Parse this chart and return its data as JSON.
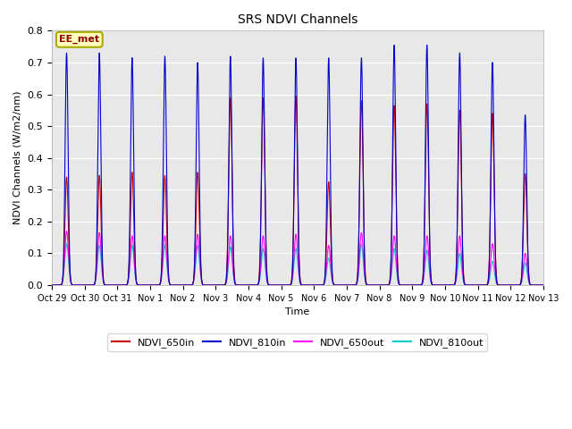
{
  "title": "SRS NDVI Channels",
  "ylabel": "NDVI Channels (W/m2/nm)",
  "xlabel": "Time",
  "ylim": [
    0.0,
    0.8
  ],
  "yticks": [
    0.0,
    0.1,
    0.2,
    0.3,
    0.4,
    0.5,
    0.6,
    0.7,
    0.8
  ],
  "annotation_text": "EE_met",
  "annotation_color": "#8B0000",
  "annotation_bg": "#FFFFBB",
  "annotation_border": "#AAAA00",
  "bg_color": "#E8E8E8",
  "colors": {
    "NDVI_650in": "#CC0000",
    "NDVI_810in": "#0000CC",
    "NDVI_650out": "#FF00FF",
    "NDVI_810out": "#00CCCC"
  },
  "x_tick_labels": [
    "Oct 29",
    "Oct 30",
    "Oct 31",
    "Nov 1",
    "Nov 2",
    "Nov 3",
    "Nov 4",
    "Nov 5",
    "Nov 6",
    "Nov 7",
    "Nov 8",
    "Nov 9",
    "Nov 10",
    "Nov 11",
    "Nov 12",
    "Nov 13"
  ],
  "num_days": 15,
  "peaks_810in": [
    0.73,
    0.73,
    0.715,
    0.72,
    0.7,
    0.72,
    0.715,
    0.715,
    0.715,
    0.715,
    0.755,
    0.755,
    0.73,
    0.7,
    0.535
  ],
  "peaks_650in": [
    0.34,
    0.345,
    0.355,
    0.345,
    0.355,
    0.59,
    0.59,
    0.595,
    0.325,
    0.58,
    0.565,
    0.57,
    0.55,
    0.54,
    0.35
  ],
  "peaks_650out": [
    0.17,
    0.165,
    0.155,
    0.155,
    0.16,
    0.155,
    0.155,
    0.16,
    0.125,
    0.165,
    0.155,
    0.155,
    0.155,
    0.13,
    0.1
  ],
  "peaks_810out": [
    0.13,
    0.125,
    0.125,
    0.125,
    0.125,
    0.12,
    0.115,
    0.115,
    0.085,
    0.13,
    0.115,
    0.11,
    0.1,
    0.075,
    0.07
  ],
  "figsize": [
    6.4,
    4.8
  ],
  "dpi": 100
}
